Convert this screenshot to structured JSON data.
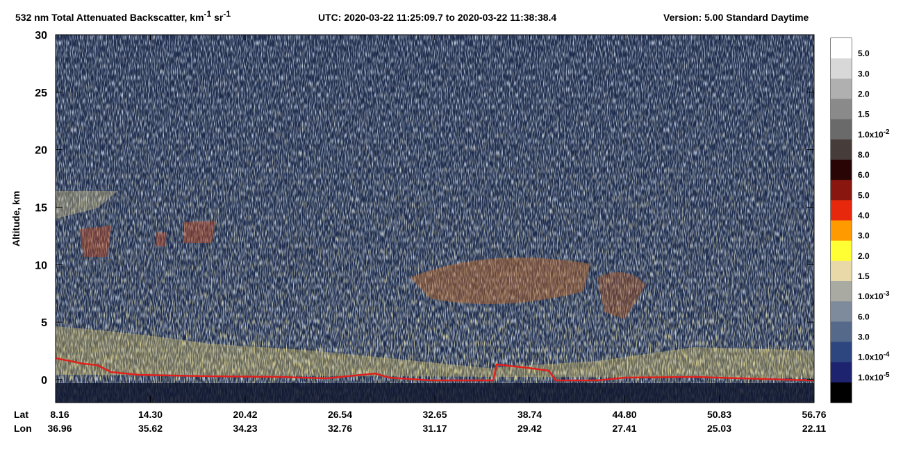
{
  "chart_data": {
    "type": "curtain",
    "title_parts": {
      "main": "532 nm Total Attenuated Backscatter, km",
      "sup1": "-1",
      "mid": " sr",
      "sup2": "-1",
      "utc": "UTC:  2020-03-22 11:25:09.7  to  2020-03-22 11:38:38.4",
      "version": "Version: 5.00  Standard  Daytime"
    },
    "y_label": "Altitude, km",
    "ylim": [
      -2,
      30
    ],
    "yticks": [
      0,
      5,
      10,
      15,
      20,
      25,
      30
    ],
    "x_row_labels": [
      "Lat",
      "Lon"
    ],
    "lat": [
      "8.16",
      "14.30",
      "20.42",
      "26.54",
      "32.65",
      "38.74",
      "44.80",
      "50.83",
      "56.76"
    ],
    "lon": [
      "36.96",
      "35.62",
      "34.23",
      "32.76",
      "31.17",
      "29.42",
      "27.41",
      "25.03",
      "22.11"
    ],
    "colorbar": {
      "colors": [
        "#ffffff",
        "#d8d8d8",
        "#b0b0b0",
        "#8a8a8a",
        "#6a6a6a",
        "#463d3b",
        "#2a0505",
        "#8a1610",
        "#e8280c",
        "#ff9a00",
        "#ffff33",
        "#ead9a8",
        "#a9aaa2",
        "#7d8b9c",
        "#55698a",
        "#2d4680",
        "#1e2370",
        "#000000"
      ],
      "labels": [
        "5.0",
        "3.0",
        "2.0",
        "1.5",
        {
          "text": "1.0x10",
          "sup": "-2"
        },
        "8.0",
        "6.0",
        "5.0",
        "4.0",
        "3.0",
        "2.0",
        "1.5",
        {
          "text": "1.0x10",
          "sup": "-3"
        },
        "6.0",
        "3.0",
        {
          "text": "1.0x10",
          "sup": "-4"
        },
        {
          "text": "1.0x10",
          "sup": "-5"
        }
      ]
    }
  }
}
